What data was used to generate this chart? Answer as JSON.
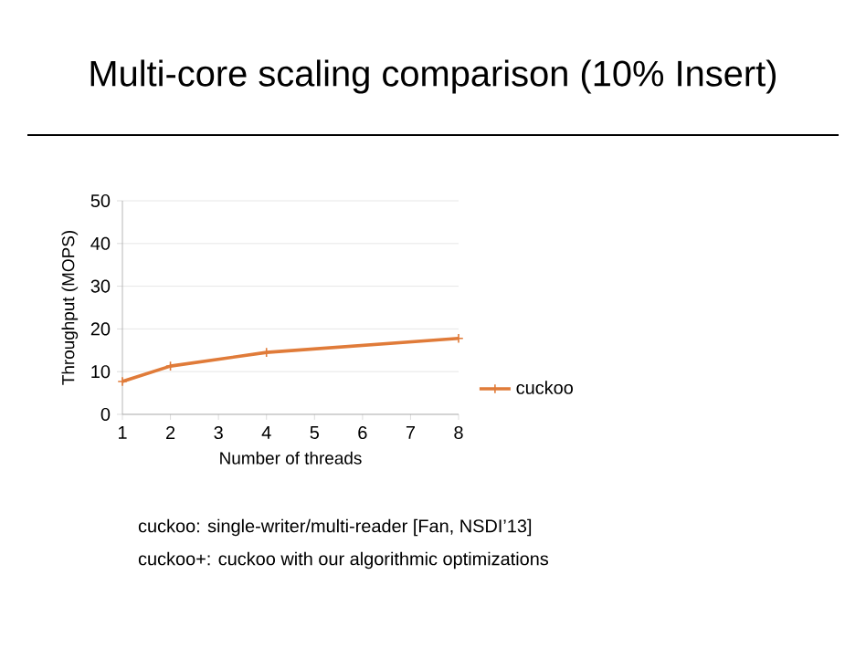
{
  "chart_data": {
    "type": "line",
    "title": "Multi-core scaling comparison (10% Insert)",
    "xlabel": "Number of threads",
    "ylabel": "Throughput (MOPS)",
    "series": [
      {
        "name": "cuckoo",
        "color": "#e07b39",
        "x": [
          1,
          2,
          4,
          8
        ],
        "values": [
          7.7,
          11.3,
          14.5,
          17.8
        ]
      }
    ],
    "xlim": [
      1,
      8
    ],
    "xticks": [
      1,
      2,
      3,
      4,
      5,
      6,
      7,
      8
    ],
    "ylim": [
      0,
      50
    ],
    "yticks": [
      0,
      10,
      20,
      30,
      40,
      50
    ],
    "grid": "y",
    "legend": "right",
    "marker": "cross",
    "line_style": "solid",
    "annotations": [
      "cuckoo:    single-writer/multi-reader [Fan, NSDI’13]",
      "cuckoo+:  cuckoo with our algorithmic optimizations"
    ]
  }
}
